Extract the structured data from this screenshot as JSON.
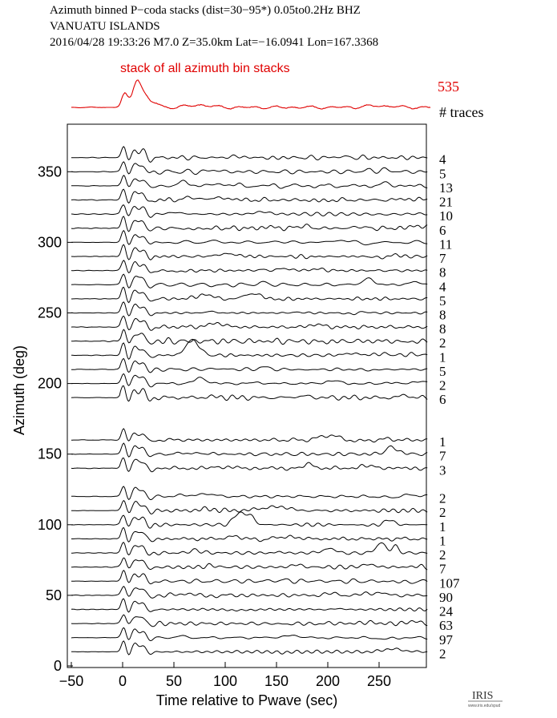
{
  "header": {
    "line1": "Azimuth binned P−coda stacks (dist=30−95*)  0.05to0.2Hz  BHZ",
    "line2": "VANUATU ISLANDS",
    "line3": "2016/04/28  19:33:26  M7.0  Z=35.0km Lat=−16.0941 Lon=167.3368"
  },
  "logo": {
    "text": "IRIS",
    "subtext": "www.iris.edu/spud"
  },
  "chart_data": {
    "type": "line",
    "title": "",
    "xlabel": "Time relative to Pwave (sec)",
    "ylabel": "Azimuth (deg)",
    "xlim": [
      -50,
      300
    ],
    "ylim": [
      0,
      380
    ],
    "xticks": [
      -50,
      0,
      50,
      100,
      150,
      200,
      250
    ],
    "yticks": [
      0,
      50,
      100,
      150,
      200,
      250,
      300,
      350
    ],
    "stack": {
      "label": "stack of all azimuth bin stacks",
      "count": "535",
      "color": "#e00000"
    },
    "count_header": "# traces",
    "traces": [
      {
        "azimuth": 360,
        "count": "4"
      },
      {
        "azimuth": 350,
        "count": "5"
      },
      {
        "azimuth": 340,
        "count": "13"
      },
      {
        "azimuth": 330,
        "count": "21"
      },
      {
        "azimuth": 320,
        "count": "10"
      },
      {
        "azimuth": 310,
        "count": "6"
      },
      {
        "azimuth": 300,
        "count": "11"
      },
      {
        "azimuth": 290,
        "count": "7"
      },
      {
        "azimuth": 280,
        "count": "8"
      },
      {
        "azimuth": 270,
        "count": "4"
      },
      {
        "azimuth": 260,
        "count": "5"
      },
      {
        "azimuth": 250,
        "count": "8"
      },
      {
        "azimuth": 240,
        "count": "8"
      },
      {
        "azimuth": 230,
        "count": "2"
      },
      {
        "azimuth": 220,
        "count": "1"
      },
      {
        "azimuth": 210,
        "count": "5"
      },
      {
        "azimuth": 200,
        "count": "2"
      },
      {
        "azimuth": 190,
        "count": "6"
      },
      {
        "azimuth": 160,
        "count": "1"
      },
      {
        "azimuth": 150,
        "count": "7"
      },
      {
        "azimuth": 140,
        "count": "3"
      },
      {
        "azimuth": 120,
        "count": "2"
      },
      {
        "azimuth": 110,
        "count": "2"
      },
      {
        "azimuth": 100,
        "count": "1"
      },
      {
        "azimuth": 90,
        "count": "1"
      },
      {
        "azimuth": 80,
        "count": "2"
      },
      {
        "azimuth": 70,
        "count": "7"
      },
      {
        "azimuth": 60,
        "count": "107"
      },
      {
        "azimuth": 50,
        "count": "90"
      },
      {
        "azimuth": 40,
        "count": "24"
      },
      {
        "azimuth": 30,
        "count": "63"
      },
      {
        "azimuth": 20,
        "count": "97"
      },
      {
        "azimuth": 10,
        "count": "2"
      }
    ]
  }
}
